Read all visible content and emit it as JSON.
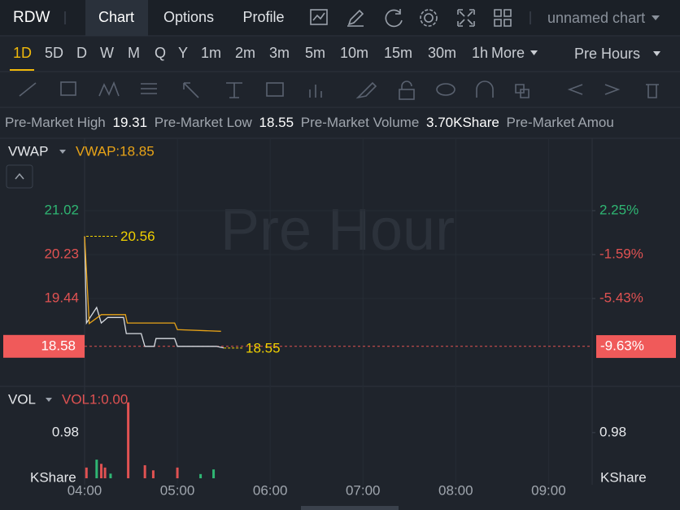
{
  "header": {
    "symbol": "RDW",
    "tabs": [
      "Chart",
      "Options",
      "Profile"
    ],
    "chart_name": "unnamed chart"
  },
  "periods": {
    "items": [
      "1D",
      "5D",
      "D",
      "W",
      "M",
      "Q",
      "Y",
      "1m",
      "2m",
      "3m",
      "5m",
      "10m",
      "15m",
      "30m",
      "1h"
    ],
    "more": "More",
    "session": "Pre Hours"
  },
  "stats": [
    {
      "label": "Pre-Market High",
      "value": 19.31
    },
    {
      "label": "Pre-Market Low",
      "value": 18.55
    },
    {
      "label": "Pre-Market Volume",
      "value": "3.70KShare"
    },
    {
      "label": "Pre-Market Amou"
    }
  ],
  "chart_data": {
    "type": "line",
    "watermark": "Pre Hour",
    "indicator": "VWAP",
    "indicator_label": "VWAP:18.85",
    "xlim": [
      4,
      9.47
    ],
    "xticks": [
      {
        "value": 4,
        "label": "04:00"
      },
      {
        "value": 5,
        "label": "05:00"
      },
      {
        "value": 6,
        "label": "06:00"
      },
      {
        "value": 7,
        "label": "07:00"
      },
      {
        "value": 8,
        "label": "08:00"
      },
      {
        "value": 9,
        "label": "09:00"
      }
    ],
    "ylim": [
      17.86,
      22.25
    ],
    "yticks": [
      21.02,
      20.23,
      19.44
    ],
    "y2lim": [
      -13.11,
      8.22
    ],
    "y2ticks": [
      {
        "value": 2.25,
        "label": "2.25%"
      },
      {
        "value": -1.59,
        "label": "-1.59%"
      },
      {
        "value": -5.43,
        "label": "-5.43%"
      }
    ],
    "grid": true,
    "last_price": 18.58,
    "last_change": {
      "value": -9.63,
      "label": "-9.63%"
    },
    "high": 20.56,
    "low": 18.55,
    "series": [
      {
        "color": "#d8dce2",
        "x": [
          4.0,
          4.02,
          4.13,
          4.18,
          4.25,
          4.42,
          4.45,
          4.61,
          4.65,
          4.75,
          4.77,
          4.97,
          5.0,
          5.42,
          5.5
        ],
        "values": [
          20.56,
          19.0,
          19.28,
          19.0,
          19.1,
          19.1,
          18.81,
          18.81,
          18.58,
          18.58,
          18.72,
          18.72,
          18.58,
          18.58,
          18.55
        ]
      },
      {
        "color": "#e8a317",
        "x": [
          4.0,
          4.05,
          4.18,
          4.44,
          4.46,
          4.97,
          5.0,
          5.47
        ],
        "values": [
          20.56,
          18.99,
          19.15,
          19.15,
          19.0,
          19.0,
          18.88,
          18.85
        ]
      }
    ]
  },
  "volume_chart": {
    "type": "bar",
    "indicator": "VOL",
    "indicator_label": "VOL1:0.00",
    "unit": "KShare",
    "ylim": [
      0,
      1.92
    ],
    "yticks": [
      0.98
    ],
    "x": [
      4.02,
      4.13,
      4.18,
      4.22,
      4.28,
      4.47,
      4.65,
      4.74,
      5.0,
      5.25,
      5.39
    ],
    "values": [
      0.23,
      0.4,
      0.31,
      0.23,
      0.1,
      1.63,
      0.28,
      0.17,
      0.23,
      0.09,
      0.19
    ],
    "colors": [
      "#e05252",
      "#2fb673",
      "#e05252",
      "#e05252",
      "#2fb673",
      "#e05252",
      "#e05252",
      "#e05252",
      "#e05252",
      "#2fb673",
      "#2fb673"
    ]
  }
}
